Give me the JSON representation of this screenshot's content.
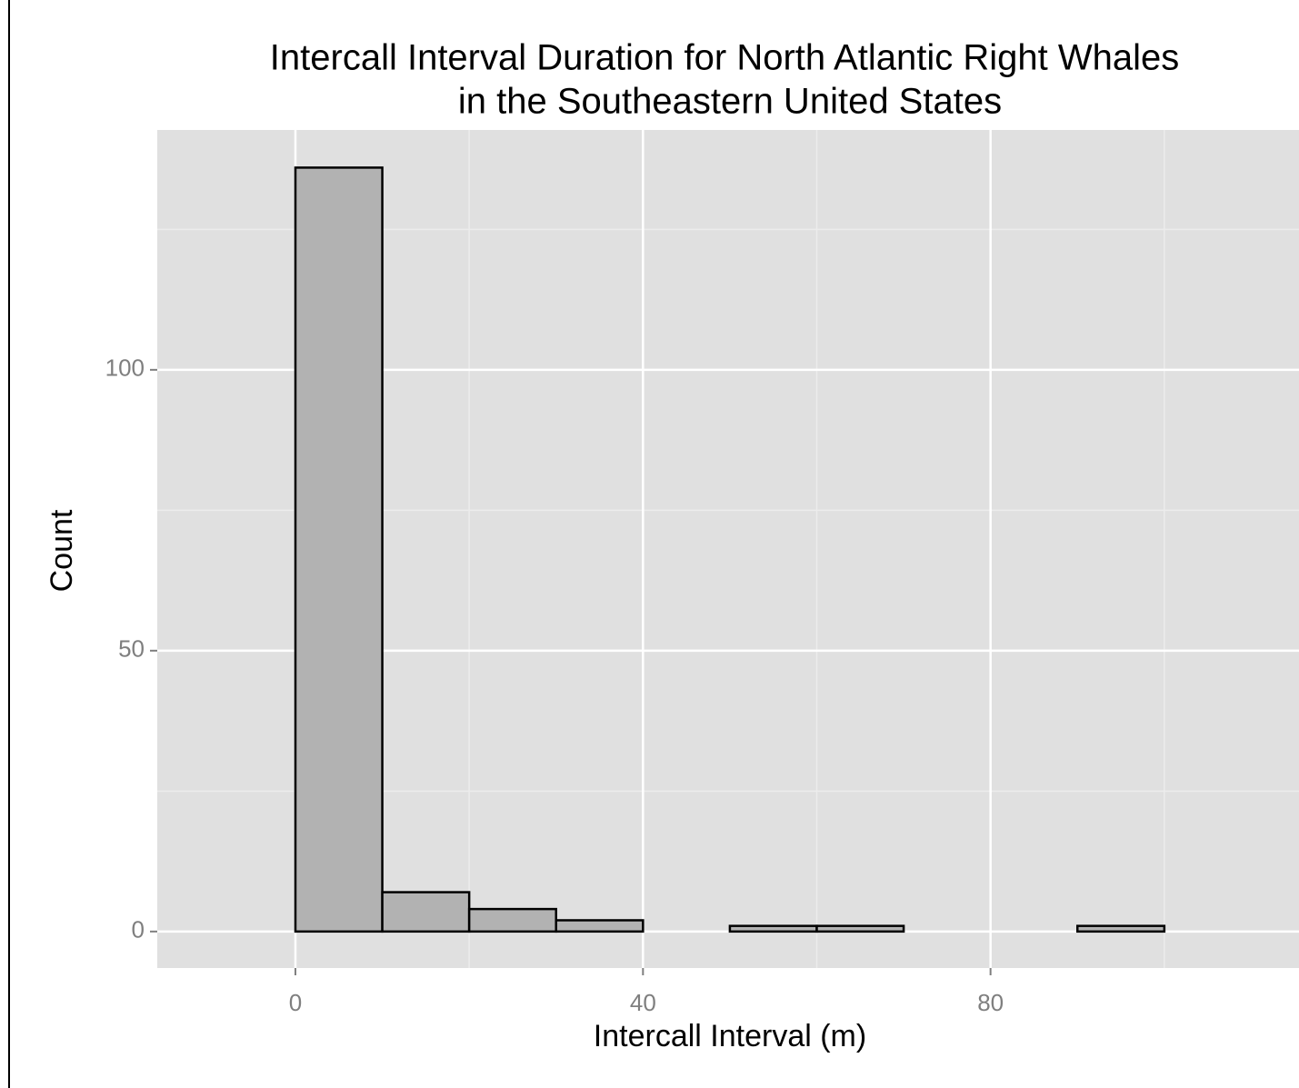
{
  "chart_data": {
    "type": "histogram",
    "title": [
      "Intercall Interval Duration for North Atlantic Right Whales",
      "in the Southeastern United States"
    ],
    "x_label": "Intercall Interval (m)",
    "y_label": "Count",
    "bins": [
      -10,
      0,
      10,
      20,
      30,
      40,
      50,
      60,
      70,
      80,
      90,
      100,
      110
    ],
    "counts": [
      0,
      136,
      7,
      4,
      2,
      0,
      1,
      1,
      0,
      0,
      1,
      0
    ],
    "color": "#b2b2b2",
    "edge_color": "#000000",
    "xlim": [
      -15.9,
      115.5
    ],
    "ylim": [
      -6.5,
      142.7
    ],
    "xticks": [
      0,
      40,
      80
    ],
    "yticks": [
      0,
      50,
      100
    ],
    "x_minor_ticks": [
      20,
      60,
      100
    ],
    "y_minor_ticks": [
      25,
      75,
      125
    ],
    "grid": true
  }
}
